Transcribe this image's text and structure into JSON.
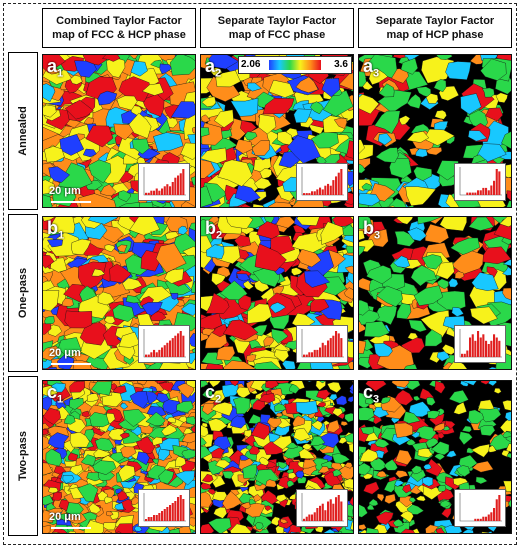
{
  "columns": [
    {
      "line1": "Combined Taylor Factor",
      "line2": "map of FCC & HCP phase"
    },
    {
      "line1": "Separate Taylor Factor",
      "line2": "map of FCC phase"
    },
    {
      "line1": "Separate Taylor Factor",
      "line2": "map of HCP phase"
    }
  ],
  "rows": [
    "Annealed",
    "One-pass",
    "Two-pass"
  ],
  "panels": [
    {
      "letter": "a",
      "sub": "1"
    },
    {
      "letter": "a",
      "sub": "2"
    },
    {
      "letter": "a",
      "sub": "3"
    },
    {
      "letter": "b",
      "sub": "1"
    },
    {
      "letter": "b",
      "sub": "2"
    },
    {
      "letter": "b",
      "sub": "3"
    },
    {
      "letter": "c",
      "sub": "1"
    },
    {
      "letter": "c",
      "sub": "2"
    },
    {
      "letter": "c",
      "sub": "3"
    }
  ],
  "scale_bar": "20 μm",
  "colorbar": {
    "min": "2.06",
    "max": "3.6"
  },
  "palette": {
    "blue": "#1f3fff",
    "cyan": "#18c8ff",
    "green": "#2ad84a",
    "yellow": "#f7f21b",
    "orange": "#ff8d1a",
    "red": "#e8101c",
    "inset_bar": "#e02020"
  }
}
